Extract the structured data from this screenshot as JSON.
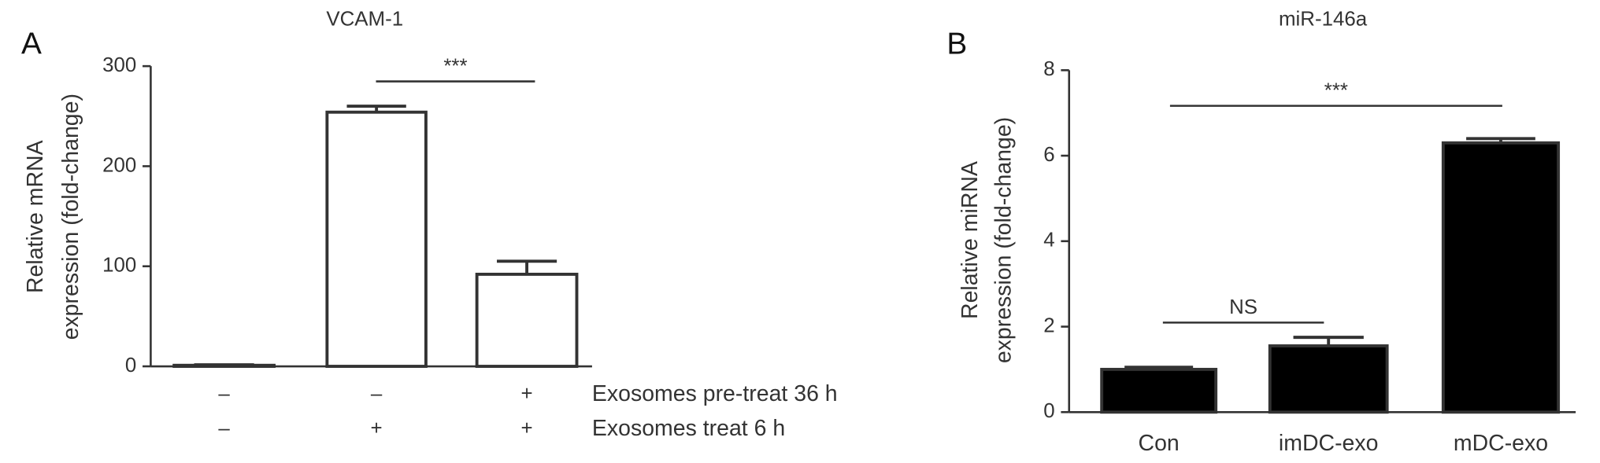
{
  "chart_data": [
    {
      "type": "bar",
      "panel_label": "A",
      "title": "VCAM-1",
      "y_label": [
        "Relative mRNA",
        "expression (fold-change)"
      ],
      "values": [
        1,
        254,
        92
      ],
      "errors": [
        0.5,
        6,
        13
      ],
      "color": "#ffffff",
      "ylim": [
        0,
        300
      ],
      "yticks": [
        0,
        100,
        200,
        300
      ],
      "treatments": [
        {
          "label": "Exosomes pre-treat 36 h",
          "values": [
            "–",
            "–",
            "+"
          ]
        },
        {
          "label": "Exosomes treat 6 h",
          "values": [
            "–",
            "+",
            "+"
          ]
        }
      ],
      "annotations": [
        {
          "text": "***"
        }
      ]
    },
    {
      "type": "bar",
      "panel_label": "B",
      "title": "miR-146a",
      "y_label": [
        "Relative miRNA",
        "expression (fold-change)"
      ],
      "categories": [
        "Con",
        "imDC-exo",
        "mDC-exo"
      ],
      "values": [
        1.0,
        1.55,
        6.3
      ],
      "errors": [
        0.05,
        0.2,
        0.1
      ],
      "color": "#000000",
      "ylim": [
        0,
        8
      ],
      "yticks": [
        0,
        2,
        4,
        6,
        8
      ],
      "annotations": [
        {
          "text": "NS"
        },
        {
          "text": "***"
        }
      ]
    }
  ]
}
